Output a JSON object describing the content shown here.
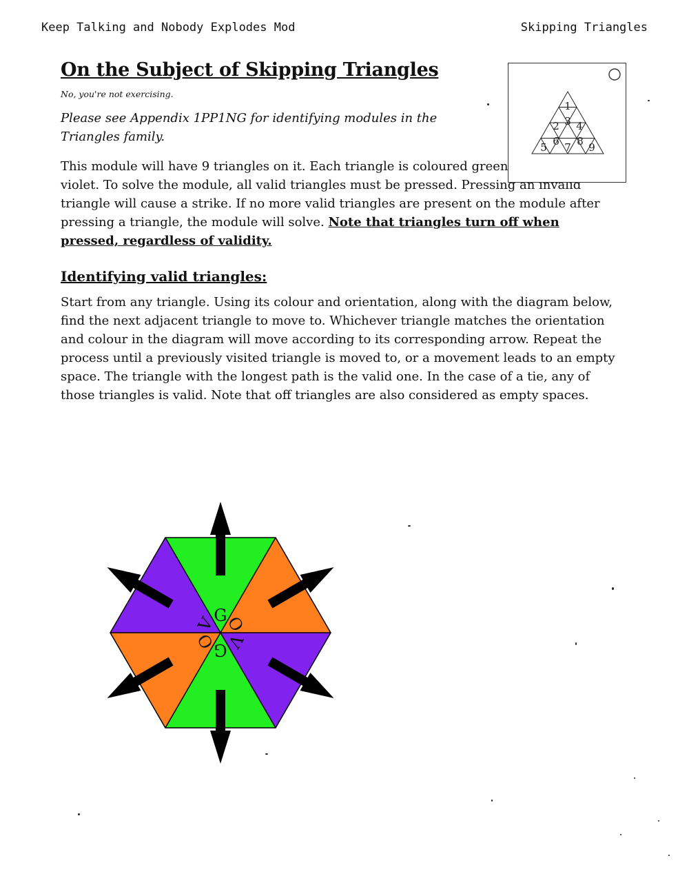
{
  "header": {
    "left": "Keep Talking and Nobody Explodes Mod",
    "right": "Skipping Triangles"
  },
  "title": "On the Subject of Skipping Triangles",
  "subtitle": "No, you're not exercising.",
  "appendix_note": "Please see Appendix 1PP1NG for identifying modules in the Triangles family.",
  "intro": "This module will have 9 triangles on it. Each triangle is coloured green, orange, or violet. To solve the module, all valid triangles must be pressed. Pressing an invalid triangle will cause a strike. If no more valid triangles are present on the module after pressing a triangle, the module will solve.",
  "intro_note": "Note that triangles turn off when pressed, regardless of validity.",
  "section_heading": "Identifying valid triangles:",
  "section_text": "Start from any triangle. Using its colour and orientation, along with the diagram below, find the next adjacent triangle to move to. Whichever triangle matches the orientation and colour in the diagram will move according to its corresponding arrow. Repeat the process until a previously visited triangle is moved to, or a movement leads to an empty space. The triangle with the longest path is the valid one. In the case of a tie, any of those triangles is valid. Note that off triangles are also considered as empty spaces.",
  "module_numbers": [
    "1",
    "2",
    "3",
    "4",
    "5",
    "6",
    "7",
    "8",
    "9"
  ],
  "diagram_letters": {
    "top": "G",
    "top_right": "O",
    "bottom_right": "V",
    "bottom": "G",
    "bottom_left": "O",
    "top_left": "V"
  },
  "colors": {
    "green": "#22ee22",
    "orange": "#ff7f1e",
    "violet": "#8222ee",
    "arrow": "#000000"
  }
}
